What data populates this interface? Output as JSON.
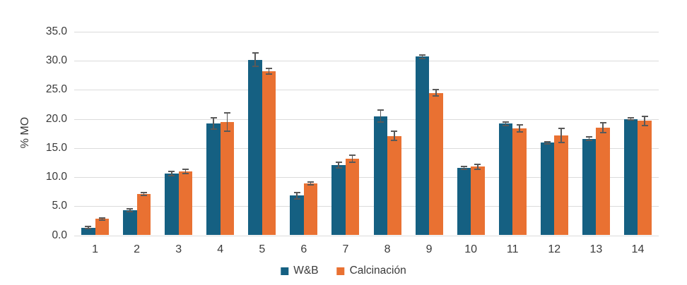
{
  "chart_data": {
    "type": "bar",
    "title": "",
    "xlabel": "",
    "ylabel": "% MO",
    "categories": [
      "1",
      "2",
      "3",
      "4",
      "5",
      "6",
      "7",
      "8",
      "9",
      "10",
      "11",
      "12",
      "13",
      "14"
    ],
    "ylim": [
      0,
      35
    ],
    "ytick_step": 5,
    "yticks": [
      "0.0",
      "5.0",
      "10.0",
      "15.0",
      "20.0",
      "25.0",
      "30.0",
      "35.0"
    ],
    "grid": true,
    "legend_position": "bottom",
    "series": [
      {
        "name": "W&B",
        "color": "#156082",
        "values": [
          1.3,
          4.3,
          10.6,
          19.2,
          30.2,
          6.8,
          12.1,
          20.5,
          30.7,
          11.6,
          19.2,
          15.9,
          16.6,
          20.0
        ],
        "errors": [
          0.2,
          0.2,
          0.4,
          1.0,
          1.2,
          0.5,
          0.5,
          1.0,
          0.3,
          0.2,
          0.3,
          0.2,
          0.3,
          0.2
        ]
      },
      {
        "name": "Calcinación",
        "color": "#E97132",
        "values": [
          2.8,
          7.1,
          11.0,
          19.5,
          28.2,
          8.9,
          13.2,
          17.1,
          24.5,
          11.8,
          18.4,
          17.2,
          18.5,
          19.7
        ],
        "errors": [
          0.2,
          0.3,
          0.4,
          1.6,
          0.5,
          0.2,
          0.6,
          0.8,
          0.5,
          0.4,
          0.6,
          1.2,
          0.9,
          0.8
        ]
      }
    ],
    "error_bar_color": "#595959",
    "grid_color": "#DBDBDB",
    "axis_text_color": "#3A3A3A"
  }
}
